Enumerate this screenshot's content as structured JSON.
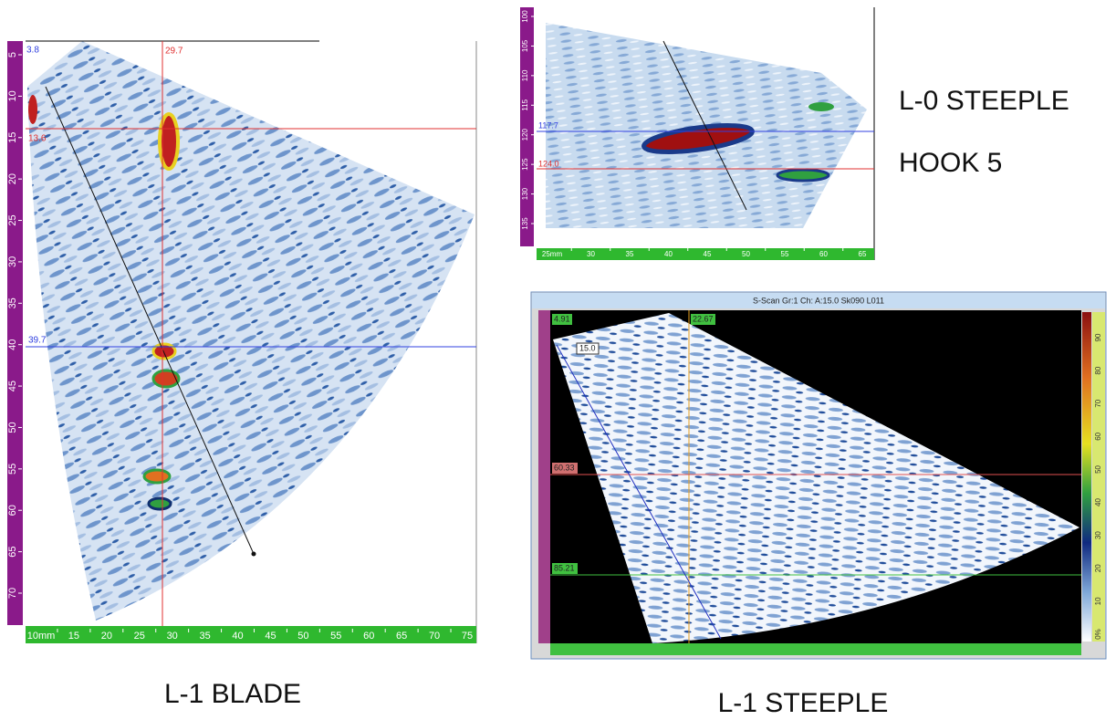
{
  "captions": {
    "blade": "L-1 BLADE",
    "l0_steeple": "L-0 STEEPLE",
    "hook": "HOOK 5",
    "l1_steeple": "L-1 STEEPLE"
  },
  "blade_scan": {
    "left_ticks": [
      "5",
      "10",
      "15",
      "20",
      "25",
      "30",
      "35",
      "40",
      "45",
      "50",
      "55",
      "60",
      "65",
      "70"
    ],
    "bottom_ticks": [
      "10mm",
      "15",
      "20",
      "25",
      "30",
      "35",
      "40",
      "45",
      "50",
      "55",
      "60",
      "65",
      "70",
      "75"
    ],
    "cursors": {
      "corner": "3.8",
      "vertical": "29.7",
      "upper": "13.6",
      "lower": "39.7"
    }
  },
  "l0_scan": {
    "left_ticks": [
      "100",
      "105",
      "110",
      "115",
      "120",
      "125",
      "130",
      "135"
    ],
    "bottom_ticks": [
      "25mm",
      "30",
      "35",
      "40",
      "45",
      "50",
      "55",
      "60",
      "65"
    ],
    "cursors": {
      "upper": "117.7",
      "lower": "124.0"
    }
  },
  "l1_scan": {
    "title": "S-Scan Gr:1 Ch: A:15.0 Sk090 L011",
    "cursors": {
      "corner": "4.91",
      "vertical": "22.67",
      "upper": "60.33",
      "lower": "85.21",
      "angle": "15.0"
    },
    "color_ticks": [
      "90",
      "80",
      "70",
      "60",
      "50",
      "40",
      "30",
      "20",
      "10",
      "0%"
    ]
  }
}
